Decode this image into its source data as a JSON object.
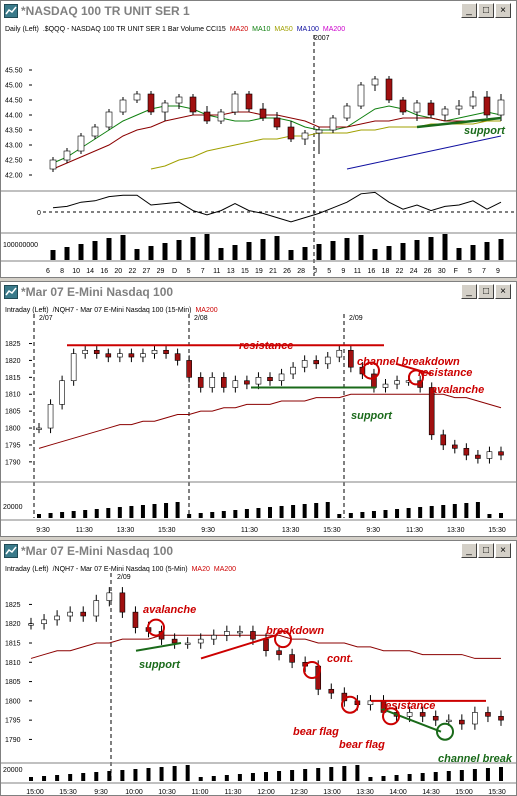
{
  "colors": {
    "up": "#ffffff",
    "down": "#a01010",
    "ma10": "#108010",
    "ma20": "#8b0000",
    "ma50": "#a0a000",
    "ma100": "#1010a0",
    "annot_red": "#cc0000",
    "annot_green": "#1a6a1a"
  },
  "window_buttons": {
    "min": "_",
    "max": "□",
    "close": "×"
  },
  "windows": [
    {
      "title": "*NASDAQ 100 TR UNIT SER 1",
      "legend": [
        {
          "text": "Daily  (Left)",
          "color": "#000000"
        },
        {
          "text": ".$QQQ - NASDAQ 100 TR UNIT SER 1  Bar  Volume  CCI15",
          "color": "#000000"
        },
        {
          "text": "MA20",
          "color": "#cc0000"
        },
        {
          "text": "MA10",
          "color": "#108010"
        },
        {
          "text": "MA50",
          "color": "#a0a000"
        },
        {
          "text": "MA100",
          "color": "#1010a0"
        },
        {
          "text": "MA200",
          "color": "#cc00cc"
        }
      ],
      "year_marker": "2007",
      "y_ticks": [
        "45.50",
        "45.00",
        "44.50",
        "44.00",
        "43.50",
        "43.00",
        "42.50",
        "42.00"
      ],
      "cci_zero": "0",
      "volume_label": "100000000",
      "x_ticks": [
        "6",
        "8",
        "10",
        "14",
        "16",
        "20",
        "22",
        "27",
        "29",
        "D",
        "5",
        "7",
        "11",
        "13",
        "15",
        "19",
        "21",
        "26",
        "28",
        "J",
        "5",
        "9",
        "11",
        "16",
        "18",
        "22",
        "24",
        "26",
        "30",
        "F",
        "5",
        "7",
        "9"
      ],
      "annotations": [
        "support"
      ]
    },
    {
      "title": "*Mar 07  E-Mini Nasdaq 100",
      "legend": [
        {
          "text": "Intraday  (Left)",
          "color": "#000000"
        },
        {
          "text": "/NQH7 - Mar 07  E-Mini Nasdaq 100 (15-Min)",
          "color": "#000000"
        },
        {
          "text": "MA200",
          "color": "#cc0000"
        }
      ],
      "date_markers": [
        "2/07",
        "2/08",
        "2/09"
      ],
      "y_ticks": [
        "1825",
        "1820",
        "1815",
        "1810",
        "1805",
        "1800",
        "1795",
        "1790"
      ],
      "volume_label": "20000",
      "x_ticks": [
        "9:30",
        "11:30",
        "13:30",
        "15:30",
        "9:30",
        "11:30",
        "13:30",
        "15:30",
        "9:30",
        "11:30",
        "13:30",
        "15:30"
      ],
      "annotations": [
        "resistance",
        "channel breakdown",
        "resistance",
        "avalanche",
        "support"
      ]
    },
    {
      "title": "*Mar 07  E-Mini Nasdaq 100",
      "legend": [
        {
          "text": "Intraday  (Left)",
          "color": "#000000"
        },
        {
          "text": "/NQH7 - Mar 07  E-Mini Nasdaq 100 (5-Min)",
          "color": "#000000"
        },
        {
          "text": "MA20",
          "color": "#cc0000"
        },
        {
          "text": "MA200",
          "color": "#cc0000"
        }
      ],
      "date_markers": [
        "2/09"
      ],
      "y_ticks": [
        "1825",
        "1820",
        "1815",
        "1810",
        "1805",
        "1800",
        "1795",
        "1790"
      ],
      "volume_label": "20000",
      "x_ticks": [
        "15:00",
        "15:30",
        "9:30",
        "10:00",
        "10:30",
        "11:00",
        "11:30",
        "12:00",
        "12:30",
        "13:00",
        "13:30",
        "14:00",
        "14:30",
        "15:00",
        "15:30"
      ],
      "annotations": [
        "avalanche",
        "support",
        "breakdown",
        "cont.",
        "bear flag",
        "bear flag",
        "resistance",
        "channel break"
      ]
    }
  ],
  "chart_data": [
    {
      "type": "bar",
      "title": "*NASDAQ 100 TR UNIT SER 1",
      "subtitle": "Daily - .$QQQ - NASDAQ 100 TR UNIT SER 1 Bar Volume CCI15",
      "ylim": [
        41.8,
        45.8
      ],
      "legend": "top-left",
      "grid": false,
      "series": [
        {
          "name": "MA10",
          "values": [
            42.4,
            42.6,
            42.9,
            43.2,
            43.5,
            43.8,
            44.0,
            44.2,
            44.3,
            44.3,
            44.2,
            44.0,
            43.9,
            43.8,
            43.8,
            43.9,
            43.9,
            43.8,
            43.6,
            43.5,
            43.5,
            43.6,
            43.9,
            44.2,
            44.3,
            44.2,
            44.0,
            43.9,
            43.8,
            43.9,
            44.0,
            44.1,
            44.0
          ]
        },
        {
          "name": "MA20",
          "values": [
            42.2,
            42.4,
            42.6,
            42.8,
            43.0,
            43.3,
            43.5,
            43.6,
            43.8,
            43.9,
            44.0,
            44.0,
            44.0,
            44.1,
            44.1,
            44.0,
            44.0,
            43.9,
            43.8,
            43.6,
            43.6,
            43.6,
            43.7,
            43.8,
            43.8,
            43.9,
            43.9,
            43.9,
            43.8,
            43.8,
            43.8,
            43.8,
            43.8
          ]
        },
        {
          "name": "MA50",
          "values": [
            null,
            null,
            null,
            null,
            null,
            null,
            null,
            42.2,
            42.3,
            42.5,
            42.6,
            42.8,
            42.9,
            43.0,
            43.1,
            43.2,
            43.2,
            43.3,
            43.3,
            43.4,
            43.4,
            43.4,
            43.5,
            43.5,
            43.6,
            43.6,
            43.6,
            43.7,
            43.7,
            43.7,
            43.7,
            43.8,
            43.8
          ]
        },
        {
          "name": "MA100",
          "values": [
            null,
            null,
            null,
            null,
            null,
            null,
            null,
            null,
            null,
            null,
            null,
            null,
            null,
            null,
            null,
            null,
            null,
            null,
            null,
            null,
            null,
            42.2,
            42.3,
            42.4,
            42.5,
            42.6,
            42.7,
            42.8,
            42.9,
            43.0,
            43.1,
            43.2,
            43.3
          ]
        }
      ],
      "categories": [
        "6",
        "8",
        "10",
        "14",
        "16",
        "20",
        "22",
        "27",
        "29",
        "D",
        "5",
        "7",
        "11",
        "13",
        "15",
        "19",
        "21",
        "26",
        "28",
        "J",
        "5",
        "9",
        "11",
        "16",
        "18",
        "22",
        "24",
        "26",
        "30",
        "F",
        "5",
        "7",
        "9"
      ],
      "ohlc": [
        [
          42.2,
          42.6,
          42.1,
          42.5
        ],
        [
          42.5,
          42.9,
          42.4,
          42.8
        ],
        [
          42.8,
          43.4,
          42.7,
          43.3
        ],
        [
          43.3,
          43.7,
          43.2,
          43.6
        ],
        [
          43.6,
          44.2,
          43.5,
          44.1
        ],
        [
          44.1,
          44.6,
          44.0,
          44.5
        ],
        [
          44.5,
          44.8,
          44.4,
          44.7
        ],
        [
          44.7,
          44.8,
          44.0,
          44.1
        ],
        [
          44.1,
          44.5,
          43.8,
          44.4
        ],
        [
          44.4,
          44.7,
          44.2,
          44.6
        ],
        [
          44.6,
          44.7,
          44.0,
          44.1
        ],
        [
          44.1,
          44.3,
          43.7,
          43.8
        ],
        [
          43.8,
          44.2,
          43.7,
          44.1
        ],
        [
          44.1,
          44.8,
          44.0,
          44.7
        ],
        [
          44.7,
          44.8,
          44.1,
          44.2
        ],
        [
          44.2,
          44.4,
          43.8,
          43.9
        ],
        [
          43.9,
          44.1,
          43.5,
          43.6
        ],
        [
          43.6,
          43.8,
          43.1,
          43.2
        ],
        [
          43.2,
          43.5,
          43.0,
          43.4
        ],
        [
          43.4,
          43.6,
          42.7,
          43.5
        ],
        [
          43.5,
          44.0,
          43.4,
          43.9
        ],
        [
          43.9,
          44.4,
          43.8,
          44.3
        ],
        [
          44.3,
          45.1,
          44.2,
          45.0
        ],
        [
          45.0,
          45.3,
          44.8,
          45.2
        ],
        [
          45.2,
          45.3,
          44.4,
          44.5
        ],
        [
          44.5,
          44.6,
          44.0,
          44.1
        ],
        [
          44.1,
          44.5,
          43.8,
          44.4
        ],
        [
          44.4,
          44.5,
          43.9,
          44.0
        ],
        [
          44.0,
          44.3,
          43.8,
          44.2
        ],
        [
          44.2,
          44.5,
          44.0,
          44.3
        ],
        [
          44.3,
          44.8,
          44.2,
          44.6
        ],
        [
          44.6,
          44.8,
          43.9,
          44.0
        ],
        [
          44.0,
          44.7,
          43.8,
          44.5
        ]
      ],
      "support_line": {
        "from": [
          26,
          43.6
        ],
        "to": [
          32,
          43.9
        ]
      }
    },
    {
      "type": "bar",
      "title": "*Mar 07 E-Mini Nasdaq 100",
      "subtitle": "Intraday - /NQH7 - Mar 07 E-Mini Nasdaq 100 (15-Min) MA200",
      "ylim": [
        1787,
        1829
      ],
      "legend": "top-left",
      "grid": false,
      "closes": [
        1800,
        1807,
        1814,
        1822,
        1823,
        1822,
        1821,
        1822,
        1821,
        1822,
        1823,
        1822,
        1820,
        1815,
        1812,
        1815,
        1812,
        1814,
        1813,
        1815,
        1814,
        1816,
        1818,
        1820,
        1819,
        1821,
        1823,
        1818,
        1816,
        1812,
        1813,
        1814,
        1814,
        1812,
        1798,
        1795,
        1794,
        1792,
        1791,
        1793,
        1792
      ],
      "series": [
        {
          "name": "MA200",
          "values": [
            1794,
            1795,
            1796,
            1797,
            1798,
            1799,
            1800,
            1801,
            1801,
            1802,
            1802,
            1803,
            1804,
            1804,
            1805,
            1805,
            1806,
            1806,
            1807,
            1807,
            1807,
            1808,
            1808,
            1808,
            1809,
            1809,
            1809,
            1810,
            1810,
            1810,
            1810,
            1810,
            1810,
            1810,
            1810,
            1810,
            1809,
            1809,
            1808,
            1807,
            1806
          ]
        }
      ],
      "resistance_level": 1824.5,
      "support_level": 1812
    },
    {
      "type": "bar",
      "title": "*Mar 07 E-Mini Nasdaq 100",
      "subtitle": "Intraday - /NQH7 - Mar 07 E-Mini Nasdaq 100 (5-Min) MA20 MA200",
      "ylim": [
        1787,
        1829
      ],
      "legend": "top-left",
      "grid": false,
      "closes": [
        1820,
        1821,
        1822,
        1823,
        1822,
        1826,
        1828,
        1823,
        1819,
        1818,
        1816,
        1815,
        1815,
        1816,
        1817,
        1818,
        1818,
        1816,
        1813,
        1812,
        1810,
        1809,
        1803,
        1802,
        1800,
        1799,
        1800,
        1797,
        1796,
        1797,
        1796,
        1795,
        1795,
        1794,
        1797,
        1796,
        1795
      ],
      "series": [
        {
          "name": "MA200",
          "values": [
            1811,
            1812,
            1813,
            1813,
            1814,
            1815,
            1815,
            1816,
            1816,
            1816,
            1817,
            1817,
            1817,
            1817,
            1817,
            1817,
            1817,
            1817,
            1817,
            1817,
            1816,
            1816,
            1815,
            1815,
            1815,
            1814,
            1814,
            1813,
            1813,
            1813,
            1812,
            1812,
            1812,
            1812,
            1811,
            1811,
            1811
          ]
        }
      ],
      "resistance_level": 1800
    }
  ]
}
